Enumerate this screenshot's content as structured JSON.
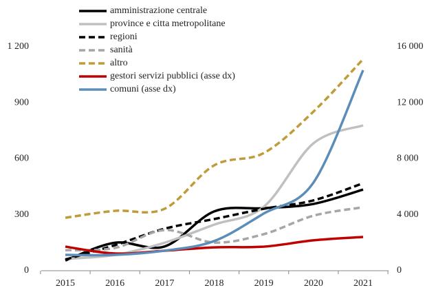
{
  "chart_data": {
    "type": "line",
    "categories": [
      "2015",
      "2016",
      "2017",
      "2018",
      "2019",
      "2020",
      "2021"
    ],
    "ylim": [
      0,
      1200
    ],
    "yticks": [
      0,
      300,
      600,
      900,
      {
        "value": 1200,
        "label": "1 200"
      }
    ],
    "y2lim": [
      0,
      16000
    ],
    "y2ticks": [
      0,
      {
        "value": 4000,
        "label": "4 000"
      },
      {
        "value": 8000,
        "label": "8 000"
      },
      {
        "value": 12000,
        "label": "12 000"
      },
      {
        "value": 16000,
        "label": "16 000"
      }
    ],
    "series": [
      {
        "name": "amministrazione centrale",
        "color": "#000000",
        "dashed": false,
        "values": [
          55,
          150,
          130,
          318,
          335,
          358,
          435
        ]
      },
      {
        "name": "province e citta metropolitane",
        "color": "#c0c0c0",
        "dashed": false,
        "values": [
          63,
          85,
          150,
          247,
          343,
          683,
          779
        ]
      },
      {
        "name": "regioni",
        "color": "#000000",
        "dashed": true,
        "values": [
          60,
          137,
          225,
          277,
          332,
          377,
          469
        ]
      },
      {
        "name": "sanità",
        "color": "#a6a6a6",
        "dashed": true,
        "values": [
          110,
          122,
          218,
          151,
          196,
          295,
          340
        ]
      },
      {
        "name": "altro",
        "color": "#bf9b3a",
        "dashed": true,
        "values": [
          284,
          321,
          332,
          565,
          631,
          853,
          1134
        ]
      },
      {
        "name": "gestori servizi pubblici (asse dx)",
        "color": "#c00000",
        "dashed": false,
        "axis": "y2",
        "values": [
          1720,
          1230,
          1430,
          1670,
          1720,
          2170,
          2410
        ]
      },
      {
        "name": "comuni (asse dx)",
        "color": "#5b8db8",
        "dashed": false,
        "axis": "y2",
        "values": [
          1130,
          1130,
          1430,
          2120,
          4090,
          6300,
          14330
        ]
      }
    ]
  }
}
